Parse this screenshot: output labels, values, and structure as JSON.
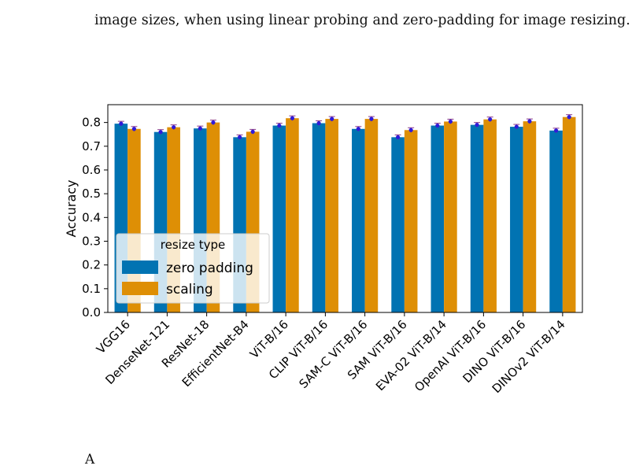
{
  "captions": {
    "top": "image sizes, when using linear probing and zero-padding for image resizing.",
    "bottom": "A"
  },
  "colors": {
    "zero_padding": "#0173b2",
    "scaling": "#de8f05",
    "markers": "#2f1bd9"
  },
  "chart_data": {
    "type": "bar",
    "title": "",
    "xlabel": "",
    "ylabel": "Accuracy",
    "ylim": [
      0,
      0.875
    ],
    "yticks": [
      0.0,
      0.1,
      0.2,
      0.3,
      0.4,
      0.5,
      0.6,
      0.7,
      0.8
    ],
    "ytick_labels": [
      "0.0",
      "0.1",
      "0.2",
      "0.3",
      "0.4",
      "0.5",
      "0.6",
      "0.7",
      "0.8"
    ],
    "grid": false,
    "legend": {
      "title": "resize type",
      "placement": "lower-left"
    },
    "categories": [
      "VGG16",
      "DenseNet-121",
      "ResNet-18",
      "EfficientNet-B4",
      "ViT-B/16",
      "CLIP ViT-B/16",
      "SAM-C ViT-B/16",
      "SAM ViT-B/16",
      "EVA-02 ViT-B/14",
      "OpenAI ViT-B/16",
      "DINO ViT-B/16",
      "DINOv2 ViT-B/14"
    ],
    "series": [
      {
        "name": "zero padding",
        "values": [
          0.795,
          0.76,
          0.775,
          0.738,
          0.787,
          0.797,
          0.773,
          0.738,
          0.787,
          0.79,
          0.782,
          0.766
        ]
      },
      {
        "name": "scaling",
        "values": [
          0.773,
          0.78,
          0.8,
          0.761,
          0.818,
          0.815,
          0.815,
          0.768,
          0.804,
          0.813,
          0.805,
          0.823
        ]
      }
    ]
  }
}
